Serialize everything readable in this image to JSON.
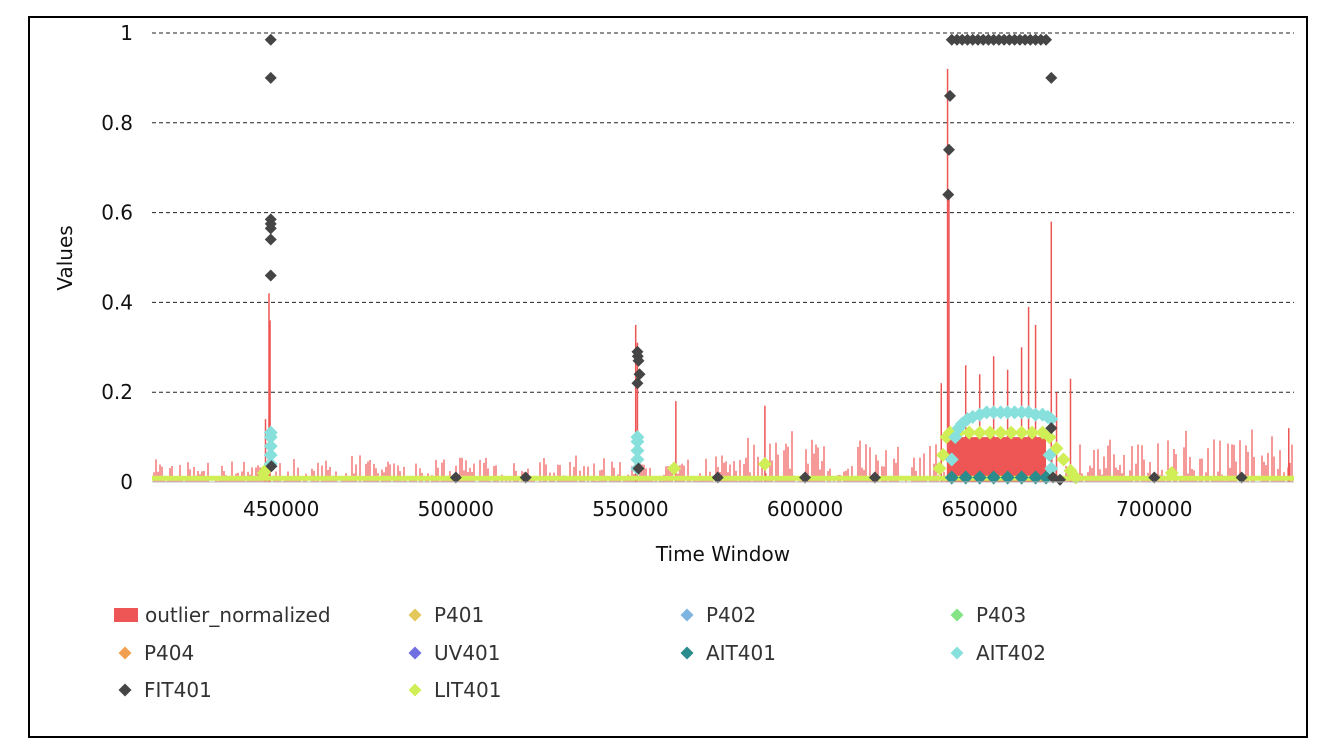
{
  "chart_data": {
    "type": "scatter",
    "title": "",
    "xlabel": "Time Window",
    "ylabel": "Values",
    "xlim": [
      413000,
      740000
    ],
    "ylim": [
      0,
      1
    ],
    "x_ticks": [
      450000,
      500000,
      550000,
      600000,
      650000,
      700000
    ],
    "x_tick_labels": [
      "450000",
      "500000",
      "550000",
      "600000",
      "650000",
      "700000"
    ],
    "y_ticks": [
      0,
      0.2,
      0.4,
      0.6,
      0.8,
      1
    ],
    "y_tick_labels": [
      "0",
      "0.2",
      "0.4",
      "0.6",
      "0.8",
      "1"
    ],
    "grid": "horizontal-dashed",
    "legend_position": "bottom",
    "series": [
      {
        "name": "outlier_normalized",
        "kind": "bar",
        "color": "#ee5555",
        "spikes": [
          {
            "x": 446500,
            "y": 0.42
          },
          {
            "x": 446800,
            "y": 0.36
          },
          {
            "x": 445500,
            "y": 0.14
          },
          {
            "x": 551500,
            "y": 0.35
          },
          {
            "x": 552000,
            "y": 0.31
          },
          {
            "x": 563000,
            "y": 0.18
          },
          {
            "x": 588500,
            "y": 0.17
          },
          {
            "x": 639000,
            "y": 0.22
          },
          {
            "x": 640800,
            "y": 0.92
          },
          {
            "x": 641200,
            "y": 0.63
          },
          {
            "x": 670500,
            "y": 0.58
          },
          {
            "x": 664000,
            "y": 0.39
          },
          {
            "x": 662000,
            "y": 0.3
          },
          {
            "x": 658000,
            "y": 0.25
          },
          {
            "x": 666000,
            "y": 0.35
          },
          {
            "x": 672000,
            "y": 0.2
          },
          {
            "x": 676000,
            "y": 0.23
          },
          {
            "x": 646000,
            "y": 0.26
          },
          {
            "x": 650000,
            "y": 0.24
          },
          {
            "x": 654000,
            "y": 0.28
          },
          {
            "x": 738500,
            "y": 0.12
          }
        ]
      },
      {
        "name": "P401",
        "kind": "marker",
        "color": "#e3c75a",
        "points": []
      },
      {
        "name": "P402",
        "kind": "marker",
        "color": "#7db4e0",
        "points": []
      },
      {
        "name": "P403",
        "kind": "marker",
        "color": "#84e384",
        "points": []
      },
      {
        "name": "P404",
        "kind": "marker",
        "color": "#f0a050",
        "points": []
      },
      {
        "name": "UV401",
        "kind": "marker",
        "color": "#7070e0",
        "points": []
      },
      {
        "name": "AIT401",
        "kind": "marker",
        "color": "#2a8c8c",
        "points": [
          {
            "x": 642000,
            "y": 0.01
          },
          {
            "x": 646000,
            "y": 0.01
          },
          {
            "x": 650000,
            "y": 0.01
          },
          {
            "x": 654000,
            "y": 0.01
          },
          {
            "x": 658000,
            "y": 0.01
          },
          {
            "x": 662000,
            "y": 0.01
          },
          {
            "x": 666000,
            "y": 0.01
          },
          {
            "x": 669000,
            "y": 0.01
          }
        ]
      },
      {
        "name": "AIT402",
        "kind": "marker",
        "color": "#88e0dc",
        "points": [
          {
            "x": 447000,
            "y": 0.04
          },
          {
            "x": 447000,
            "y": 0.06
          },
          {
            "x": 447000,
            "y": 0.08
          },
          {
            "x": 447000,
            "y": 0.1
          },
          {
            "x": 447000,
            "y": 0.11
          },
          {
            "x": 552000,
            "y": 0.03
          },
          {
            "x": 552000,
            "y": 0.05
          },
          {
            "x": 552000,
            "y": 0.07
          },
          {
            "x": 552000,
            "y": 0.09
          },
          {
            "x": 552000,
            "y": 0.1
          },
          {
            "x": 642000,
            "y": 0.05
          },
          {
            "x": 643000,
            "y": 0.1
          },
          {
            "x": 644000,
            "y": 0.12
          },
          {
            "x": 645000,
            "y": 0.13
          },
          {
            "x": 646500,
            "y": 0.14
          },
          {
            "x": 648000,
            "y": 0.145
          },
          {
            "x": 650000,
            "y": 0.15
          },
          {
            "x": 652000,
            "y": 0.155
          },
          {
            "x": 654000,
            "y": 0.155
          },
          {
            "x": 656000,
            "y": 0.155
          },
          {
            "x": 658000,
            "y": 0.155
          },
          {
            "x": 660000,
            "y": 0.155
          },
          {
            "x": 662000,
            "y": 0.155
          },
          {
            "x": 664000,
            "y": 0.155
          },
          {
            "x": 666000,
            "y": 0.15
          },
          {
            "x": 668000,
            "y": 0.15
          },
          {
            "x": 669500,
            "y": 0.145
          },
          {
            "x": 670500,
            "y": 0.14
          },
          {
            "x": 670000,
            "y": 0.06
          },
          {
            "x": 670500,
            "y": 0.03
          }
        ]
      },
      {
        "name": "FIT401",
        "kind": "marker",
        "color": "#454545",
        "points": [
          {
            "x": 447000,
            "y": 0.985
          },
          {
            "x": 447000,
            "y": 0.9
          },
          {
            "x": 447000,
            "y": 0.585
          },
          {
            "x": 447000,
            "y": 0.575
          },
          {
            "x": 447000,
            "y": 0.565
          },
          {
            "x": 447000,
            "y": 0.54
          },
          {
            "x": 447000,
            "y": 0.46
          },
          {
            "x": 447200,
            "y": 0.035
          },
          {
            "x": 552000,
            "y": 0.29
          },
          {
            "x": 552100,
            "y": 0.28
          },
          {
            "x": 552300,
            "y": 0.27
          },
          {
            "x": 552600,
            "y": 0.24
          },
          {
            "x": 552000,
            "y": 0.22
          },
          {
            "x": 552300,
            "y": 0.03
          },
          {
            "x": 641000,
            "y": 0.64
          },
          {
            "x": 641200,
            "y": 0.74
          },
          {
            "x": 641500,
            "y": 0.86
          },
          {
            "x": 642000,
            "y": 0.985
          },
          {
            "x": 643500,
            "y": 0.985
          },
          {
            "x": 645000,
            "y": 0.985
          },
          {
            "x": 646500,
            "y": 0.985
          },
          {
            "x": 648000,
            "y": 0.985
          },
          {
            "x": 649500,
            "y": 0.985
          },
          {
            "x": 651000,
            "y": 0.985
          },
          {
            "x": 652500,
            "y": 0.985
          },
          {
            "x": 654000,
            "y": 0.985
          },
          {
            "x": 655500,
            "y": 0.985
          },
          {
            "x": 657000,
            "y": 0.985
          },
          {
            "x": 658500,
            "y": 0.985
          },
          {
            "x": 660000,
            "y": 0.985
          },
          {
            "x": 661500,
            "y": 0.985
          },
          {
            "x": 663000,
            "y": 0.985
          },
          {
            "x": 664500,
            "y": 0.985
          },
          {
            "x": 666000,
            "y": 0.985
          },
          {
            "x": 667500,
            "y": 0.985
          },
          {
            "x": 669000,
            "y": 0.985
          },
          {
            "x": 670500,
            "y": 0.9
          },
          {
            "x": 670500,
            "y": 0.12
          },
          {
            "x": 671000,
            "y": 0.01
          },
          {
            "x": 673000,
            "y": 0.005
          },
          {
            "x": 500000,
            "y": 0.01
          },
          {
            "x": 520000,
            "y": 0.01
          },
          {
            "x": 575000,
            "y": 0.01
          },
          {
            "x": 600000,
            "y": 0.01
          },
          {
            "x": 620000,
            "y": 0.01
          },
          {
            "x": 700000,
            "y": 0.01
          },
          {
            "x": 725000,
            "y": 0.01
          }
        ]
      },
      {
        "name": "LIT401",
        "kind": "marker",
        "color": "#d0ee55",
        "points": [
          {
            "x": 445000,
            "y": 0.02
          },
          {
            "x": 446000,
            "y": 0.03
          },
          {
            "x": 562500,
            "y": 0.03
          },
          {
            "x": 588500,
            "y": 0.04
          },
          {
            "x": 638500,
            "y": 0.03
          },
          {
            "x": 639500,
            "y": 0.06
          },
          {
            "x": 640500,
            "y": 0.1
          },
          {
            "x": 641500,
            "y": 0.11
          },
          {
            "x": 644000,
            "y": 0.11
          },
          {
            "x": 647000,
            "y": 0.11
          },
          {
            "x": 650000,
            "y": 0.11
          },
          {
            "x": 653000,
            "y": 0.11
          },
          {
            "x": 656000,
            "y": 0.11
          },
          {
            "x": 659000,
            "y": 0.11
          },
          {
            "x": 662000,
            "y": 0.11
          },
          {
            "x": 665000,
            "y": 0.11
          },
          {
            "x": 668000,
            "y": 0.11
          },
          {
            "x": 670000,
            "y": 0.1
          },
          {
            "x": 672000,
            "y": 0.075
          },
          {
            "x": 674000,
            "y": 0.05
          },
          {
            "x": 676000,
            "y": 0.025
          },
          {
            "x": 677500,
            "y": 0.01
          },
          {
            "x": 705000,
            "y": 0.02
          }
        ]
      }
    ],
    "noise_band": {
      "base_max": 0.05,
      "burst_max": 0.1,
      "burst_ranges": [
        [
          583000,
          638000
        ],
        [
          678000,
          740000
        ]
      ]
    },
    "fill_band": {
      "x_from": 641000,
      "x_to": 669000,
      "y_to": 0.1,
      "color": "#ee5555"
    },
    "baseline": {
      "y": 0.005,
      "color": "#d0ee55"
    }
  }
}
